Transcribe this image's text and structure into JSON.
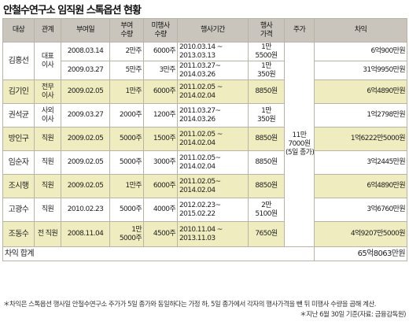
{
  "title": "안철수연구소 임직원 스톡옵션 현황",
  "headers": [
    "대상",
    "관계",
    "부여일",
    "부여\n수량",
    "미행사\n수량",
    "행사기간",
    "행사\n가격",
    "주가",
    "차익"
  ],
  "rows": [
    {
      "name": "김홍선",
      "relation": "대표\n이사",
      "grant_date": "2008.03.14",
      "grant_qty": "2만주",
      "unexercised": "6000주",
      "period": [
        "2010.03.14 ~",
        "2013.03.13"
      ],
      "price": "1만\n5500원",
      "gain": "6억900만원",
      "shade": false
    },
    {
      "name": "",
      "relation": "",
      "grant_date": "2009.03.27",
      "grant_qty": "5만주",
      "unexercised": "3만주",
      "period": [
        "2011.03.27~",
        "2014.03.26"
      ],
      "price": "1만\n350원",
      "gain": "31억9950만원",
      "shade": false
    },
    {
      "name": "김기인",
      "relation": "전무\n이사",
      "grant_date": "2009.02.05",
      "grant_qty": "1만주",
      "unexercised": "6000주",
      "period": [
        "2011.02.05 ~",
        "2014.02.04"
      ],
      "price": "8850원",
      "gain": "6억4890만원",
      "shade": true
    },
    {
      "name": "권석균",
      "relation": "사외\n이사",
      "grant_date": "2009.03.27",
      "grant_qty": "2000주",
      "unexercised": "1200주",
      "period": [
        "2011.03.27~",
        "2014.03.26"
      ],
      "price": "1만\n350원",
      "gain": "1억2798만원",
      "shade": false
    },
    {
      "name": "방인구",
      "relation": "직원",
      "grant_date": "2009.02.05",
      "grant_qty": "5000주",
      "unexercised": "1500주",
      "period": [
        "2011.02.05 ~",
        "2014.02.04"
      ],
      "price": "8850원",
      "gain": "1억6222만5000원",
      "shade": true
    },
    {
      "name": "임순자",
      "relation": "직원",
      "grant_date": "2009.02.05",
      "grant_qty": "5000주",
      "unexercised": "3000주",
      "period": [
        "2011.02.05~",
        "2014.02.04"
      ],
      "price": "8850원",
      "gain": "3억2445만원",
      "shade": false
    },
    {
      "name": "조시행",
      "relation": "직원",
      "grant_date": "2009.02.05",
      "grant_qty": "1만주",
      "unexercised": "6000주",
      "period": [
        "2011.02.05~",
        "2014.02.04"
      ],
      "price": "8850원",
      "gain": "6억4890만원",
      "shade": true
    },
    {
      "name": "고광수",
      "relation": "직원",
      "grant_date": "2010.02.23",
      "grant_qty": "5000주",
      "unexercised": "4000주",
      "period": [
        "2012.02.23~",
        "2015.02.22"
      ],
      "price": "2만\n5100원",
      "gain": "3억6760만원",
      "shade": false
    },
    {
      "name": "조동수",
      "relation": "전 직원",
      "grant_date": "2008.11.04",
      "grant_qty": "1만\n5000주",
      "unexercised": "4500주",
      "period": [
        "2010.11.04 ~",
        "2013.11.03"
      ],
      "price": "7650원",
      "gain": "4억9207만5000원",
      "shade": true
    }
  ],
  "stock_price": "11만\n7000원\n(5일 종가)",
  "total_label": "차익 합계",
  "total_value": "65억8063만원",
  "footnote_1": "＊차익은 스톡옵션 행사일 안철수연구소 주가가 5일 종가와 동일하다는 가정 하, 5일 종가에서 각자의 행사가격을 뺀 뒤 미행사 수량을 곱해 계산.",
  "footnote_2": "＊지난 6월 30일 기준(자료: 금융감독원)"
}
